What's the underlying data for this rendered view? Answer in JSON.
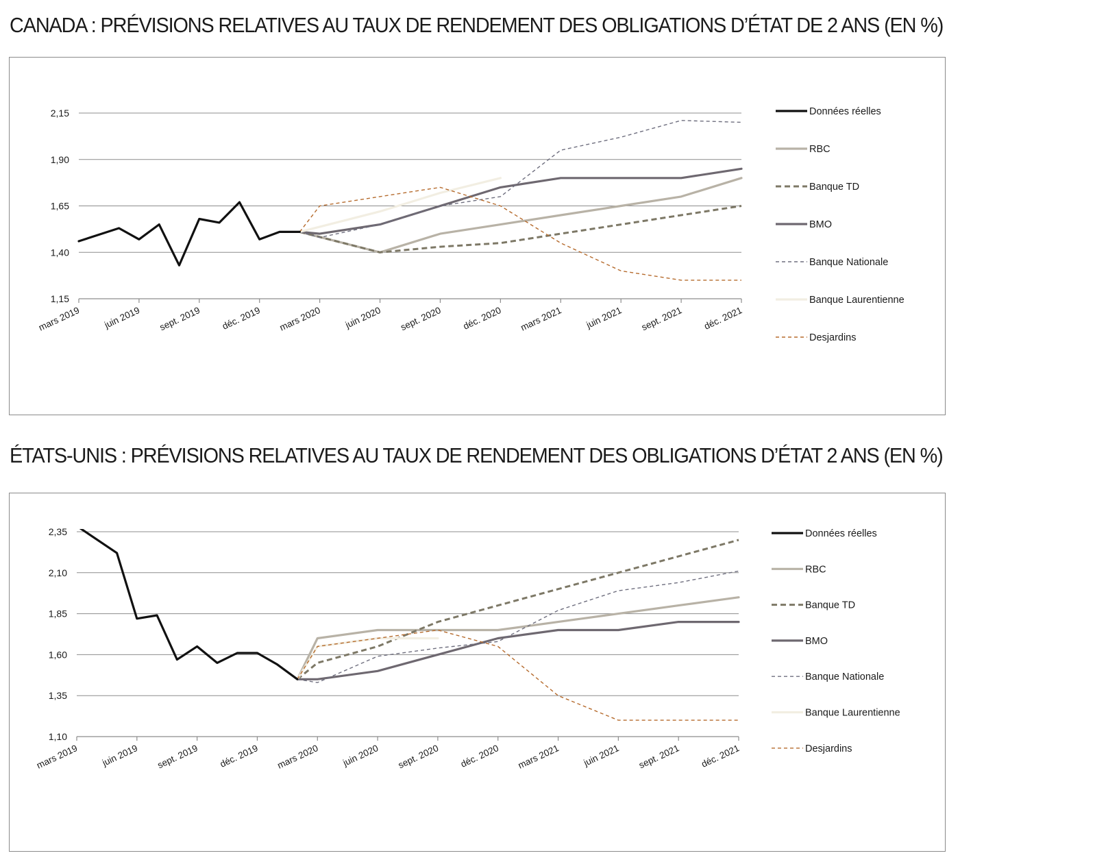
{
  "chart_data": [
    {
      "type": "line",
      "title": "CANADA : PRÉVISIONS RELATIVES AU TAUX DE RENDEMENT DES OBLIGATIONS D’ÉTAT DE 2 ANS (EN %)",
      "x_labels": [
        "mars 2019",
        "juin 2019",
        "sept. 2019",
        "déc. 2019",
        "mars 2020",
        "juin 2020",
        "sept. 2020",
        "déc. 2020",
        "mars 2021",
        "juin 2021",
        "sept. 2021",
        "déc. 2021"
      ],
      "ylim": [
        1.15,
        2.15
      ],
      "y_ticks": [
        "1,15",
        "1,40",
        "1,65",
        "1,90",
        "2,15"
      ],
      "legend_position": "right",
      "series": [
        {
          "name": "Données réelles",
          "color": "#111111",
          "style": "solid-thick",
          "x": [
            0,
            0.667,
            1,
            1.333,
            1.667,
            2,
            2.333,
            2.667,
            3,
            3.333,
            3.667
          ],
          "values": [
            1.46,
            1.53,
            1.47,
            1.55,
            1.33,
            1.58,
            1.56,
            1.67,
            1.47,
            1.51,
            1.51
          ]
        },
        {
          "name": "RBC",
          "color": "#b8b2a6",
          "style": "solid-thick",
          "x": [
            3.667,
            5,
            6,
            7,
            8,
            9,
            10,
            11
          ],
          "values": [
            1.51,
            1.4,
            1.5,
            1.55,
            1.6,
            1.65,
            1.7,
            1.8
          ]
        },
        {
          "name": "Banque TD",
          "color": "#7d7866",
          "style": "dashed-thick",
          "x": [
            3.667,
            5,
            6,
            7,
            8,
            9,
            10,
            11
          ],
          "values": [
            1.51,
            1.4,
            1.43,
            1.45,
            1.5,
            1.55,
            1.6,
            1.65
          ]
        },
        {
          "name": "BMO",
          "color": "#6e6870",
          "style": "solid-thick",
          "x": [
            3.667,
            4,
            5,
            6,
            7,
            8,
            9,
            10,
            11
          ],
          "values": [
            1.51,
            1.5,
            1.55,
            1.65,
            1.75,
            1.8,
            1.8,
            1.8,
            1.85
          ]
        },
        {
          "name": "Banque Nationale",
          "color": "#6e6e7e",
          "style": "dashed-thin",
          "x": [
            3.667,
            4,
            5,
            6,
            7,
            8,
            9,
            10,
            11
          ],
          "values": [
            1.51,
            1.48,
            1.55,
            1.65,
            1.7,
            1.95,
            2.02,
            2.11,
            2.1
          ]
        },
        {
          "name": "Banque Laurentienne",
          "color": "#f2eee2",
          "style": "solid-thick",
          "x": [
            3.667,
            5,
            6,
            7
          ],
          "values": [
            1.51,
            1.62,
            1.72,
            1.8
          ]
        },
        {
          "name": "Desjardins",
          "color": "#b56a2c",
          "style": "dashed-thin",
          "x": [
            3.667,
            4,
            5,
            6,
            7,
            8,
            9,
            10,
            11
          ],
          "values": [
            1.51,
            1.65,
            1.7,
            1.75,
            1.65,
            1.45,
            1.3,
            1.25,
            1.25
          ]
        }
      ]
    },
    {
      "type": "line",
      "title": "ÉTATS-UNIS : PRÉVISIONS RELATIVES AU TAUX DE RENDEMENT DES OBLIGATIONS D’ÉTAT 2 ANS (EN %)",
      "x_labels": [
        "mars 2019",
        "juin 2019",
        "sept. 2019",
        "déc. 2019",
        "mars 2020",
        "juin 2020",
        "sept. 2020",
        "déc. 2020",
        "mars 2021",
        "juin 2021",
        "sept. 2021",
        "déc. 2021"
      ],
      "ylim": [
        1.1,
        2.35
      ],
      "y_ticks": [
        "1,10",
        "1,35",
        "1,60",
        "1,85",
        "2,10",
        "2,35"
      ],
      "legend_position": "right",
      "series": [
        {
          "name": "Données réelles",
          "color": "#111111",
          "style": "solid-thick",
          "x": [
            -0.1,
            0.667,
            1,
            1.333,
            1.667,
            2,
            2.333,
            2.667,
            3,
            3.333,
            3.667
          ],
          "values": [
            2.41,
            2.22,
            1.82,
            1.84,
            1.57,
            1.65,
            1.55,
            1.61,
            1.61,
            1.54,
            1.45
          ]
        },
        {
          "name": "RBC",
          "color": "#b8b2a6",
          "style": "solid-thick",
          "x": [
            3.667,
            4,
            5,
            6,
            7,
            8,
            9,
            10,
            11
          ],
          "values": [
            1.45,
            1.7,
            1.75,
            1.75,
            1.75,
            1.8,
            1.85,
            1.9,
            1.95
          ]
        },
        {
          "name": "Banque TD",
          "color": "#7d7866",
          "style": "dashed-thick",
          "x": [
            3.667,
            4,
            5,
            6,
            7,
            8,
            9,
            10,
            11
          ],
          "values": [
            1.45,
            1.55,
            1.65,
            1.8,
            1.9,
            2.0,
            2.1,
            2.2,
            2.3
          ]
        },
        {
          "name": "BMO",
          "color": "#6e6870",
          "style": "solid-thick",
          "x": [
            3.667,
            4,
            5,
            6,
            7,
            8,
            9,
            10,
            11
          ],
          "values": [
            1.45,
            1.45,
            1.5,
            1.6,
            1.7,
            1.75,
            1.75,
            1.8,
            1.8
          ]
        },
        {
          "name": "Banque Nationale",
          "color": "#6e6e7e",
          "style": "dashed-thin",
          "x": [
            3.667,
            4,
            5,
            6,
            7,
            8,
            9,
            10,
            11
          ],
          "values": [
            1.45,
            1.43,
            1.59,
            1.64,
            1.68,
            1.87,
            1.99,
            2.04,
            2.11
          ]
        },
        {
          "name": "Banque Laurentienne",
          "color": "#f2eee2",
          "style": "solid-thick",
          "x": [
            3.667,
            4,
            5,
            6
          ],
          "values": [
            1.45,
            1.65,
            1.7,
            1.7
          ]
        },
        {
          "name": "Desjardins",
          "color": "#b56a2c",
          "style": "dashed-thin",
          "x": [
            3.667,
            4,
            5,
            6,
            7,
            8,
            9,
            10,
            11
          ],
          "values": [
            1.45,
            1.65,
            1.7,
            1.75,
            1.65,
            1.35,
            1.2,
            1.2,
            1.2
          ]
        }
      ]
    }
  ]
}
